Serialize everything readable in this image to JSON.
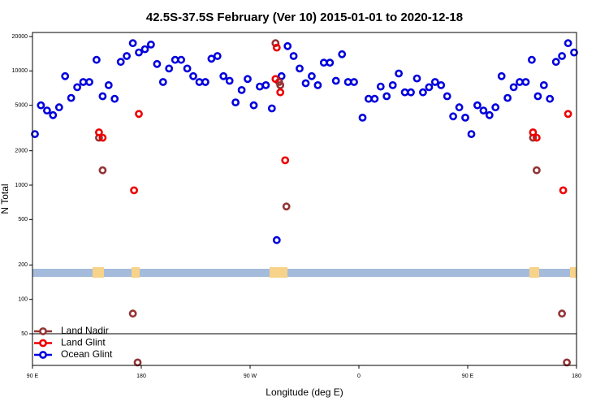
{
  "chart_data": {
    "type": "scatter",
    "title": "42.5S-37.5S February (Ver 10)   2015-01-01 to 2020-12-18",
    "xlabel": "Longitude (deg E)",
    "ylabel": "N Total",
    "y_scale": "log",
    "x_ticks": [
      {
        "value": 90,
        "label": "90 E"
      },
      {
        "value": 180,
        "label": "180"
      },
      {
        "value": 270,
        "label": "90 W"
      },
      {
        "value": 360,
        "label": "0"
      },
      {
        "value": 450,
        "label": "90 E"
      },
      {
        "value": 540,
        "label": "180"
      }
    ],
    "y_ticks": [
      {
        "value": 50,
        "label": "50"
      },
      {
        "value": 100,
        "label": "100"
      },
      {
        "value": 200,
        "label": "200"
      },
      {
        "value": 500,
        "label": "500"
      },
      {
        "value": 1000,
        "label": "1000"
      },
      {
        "value": 2000,
        "label": "2000"
      },
      {
        "value": 5000,
        "label": "5000"
      },
      {
        "value": 10000,
        "label": "10000"
      },
      {
        "value": 20000,
        "label": "20000"
      }
    ],
    "legend_position": "bottom-left",
    "series": [
      {
        "name": "Land Nadir",
        "color": "#943434",
        "points": [
          [
            145,
            2600
          ],
          [
            148,
            1350
          ],
          [
            173,
            75
          ],
          [
            177,
            28
          ],
          [
            291,
            17500
          ],
          [
            294,
            8000
          ],
          [
            295,
            7500
          ],
          [
            300,
            650
          ],
          [
            504,
            2600
          ],
          [
            507,
            1350
          ],
          [
            528,
            75
          ],
          [
            532,
            28
          ]
        ]
      },
      {
        "name": "Land Glint",
        "color": "#ee0000",
        "points": [
          [
            145,
            2900
          ],
          [
            148,
            2600
          ],
          [
            174,
            900
          ],
          [
            178,
            4200
          ],
          [
            291,
            8500
          ],
          [
            292,
            16000
          ],
          [
            295,
            6500
          ],
          [
            299,
            1650
          ],
          [
            504,
            2900
          ],
          [
            507,
            2600
          ],
          [
            529,
            900
          ],
          [
            533,
            4200
          ]
        ]
      },
      {
        "name": "Ocean Glint",
        "color": "#0000dd",
        "points": [
          [
            92,
            2800
          ],
          [
            97,
            5000
          ],
          [
            102,
            4500
          ],
          [
            107,
            4100
          ],
          [
            112,
            4800
          ],
          [
            117,
            9000
          ],
          [
            122,
            5800
          ],
          [
            127,
            7200
          ],
          [
            132,
            8000
          ],
          [
            137,
            8000
          ],
          [
            143,
            12500
          ],
          [
            148,
            6000
          ],
          [
            153,
            7500
          ],
          [
            158,
            5700
          ],
          [
            163,
            12000
          ],
          [
            168,
            13500
          ],
          [
            173,
            17500
          ],
          [
            178,
            14500
          ],
          [
            183,
            15500
          ],
          [
            188,
            17000
          ],
          [
            193,
            11500
          ],
          [
            198,
            8000
          ],
          [
            203,
            10500
          ],
          [
            208,
            12500
          ],
          [
            213,
            12500
          ],
          [
            218,
            10500
          ],
          [
            223,
            9000
          ],
          [
            228,
            8000
          ],
          [
            233,
            8000
          ],
          [
            238,
            12800
          ],
          [
            243,
            13500
          ],
          [
            248,
            9000
          ],
          [
            253,
            8200
          ],
          [
            258,
            5300
          ],
          [
            263,
            6800
          ],
          [
            268,
            8500
          ],
          [
            273,
            5000
          ],
          [
            278,
            7300
          ],
          [
            283,
            7500
          ],
          [
            288,
            4700
          ],
          [
            292,
            330
          ],
          [
            296,
            9000
          ],
          [
            301,
            16500
          ],
          [
            306,
            13500
          ],
          [
            311,
            10500
          ],
          [
            316,
            7800
          ],
          [
            321,
            9000
          ],
          [
            326,
            7500
          ],
          [
            331,
            11800
          ],
          [
            336,
            11800
          ],
          [
            341,
            8200
          ],
          [
            346,
            14000
          ],
          [
            351,
            8000
          ],
          [
            356,
            8000
          ],
          [
            363,
            3900
          ],
          [
            368,
            5700
          ],
          [
            373,
            5700
          ],
          [
            378,
            7300
          ],
          [
            383,
            6000
          ],
          [
            388,
            7500
          ],
          [
            393,
            9500
          ],
          [
            398,
            6500
          ],
          [
            403,
            6500
          ],
          [
            408,
            8600
          ],
          [
            413,
            6500
          ],
          [
            418,
            7200
          ],
          [
            423,
            8000
          ],
          [
            428,
            7500
          ],
          [
            433,
            6000
          ],
          [
            438,
            4000
          ],
          [
            443,
            4800
          ],
          [
            448,
            3900
          ],
          [
            453,
            2800
          ],
          [
            458,
            5000
          ],
          [
            463,
            4500
          ],
          [
            468,
            4100
          ],
          [
            473,
            4800
          ],
          [
            478,
            9000
          ],
          [
            483,
            5800
          ],
          [
            488,
            7200
          ],
          [
            493,
            8000
          ],
          [
            498,
            8000
          ],
          [
            503,
            12500
          ],
          [
            508,
            6000
          ],
          [
            513,
            7500
          ],
          [
            518,
            5700
          ],
          [
            523,
            12000
          ],
          [
            528,
            13500
          ],
          [
            533,
            17500
          ],
          [
            538,
            14500
          ]
        ]
      }
    ]
  }
}
